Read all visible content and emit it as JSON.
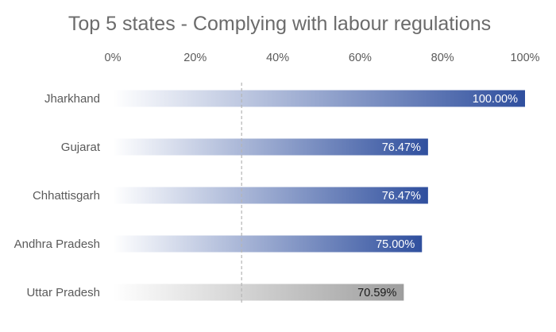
{
  "chart_data": {
    "type": "bar",
    "orientation": "horizontal",
    "title": "Top 5 states - Complying with labour regulations",
    "xlabel": "",
    "ylabel": "",
    "xlim": [
      0,
      100
    ],
    "x_ticks": [
      "0%",
      "20%",
      "40%",
      "60%",
      "80%",
      "100%"
    ],
    "x_axis_position": "top",
    "grid": false,
    "legend": "none",
    "reference_line": {
      "value": 31.25,
      "style": "dashed"
    },
    "categories": [
      "Jharkhand",
      "Gujarat",
      "Chhattisgarh",
      "Andhra Pradesh",
      "Uttar Pradesh"
    ],
    "values": [
      100.0,
      76.47,
      76.47,
      75.0,
      70.59
    ],
    "data_labels": [
      "100.00%",
      "76.47%",
      "76.47%",
      "75.00%",
      "70.59%"
    ],
    "bar_colors": [
      "#2f4f9e",
      "#2f4f9e",
      "#2f4f9e",
      "#2f4f9e",
      "#9e9e9e"
    ],
    "label_colors": [
      "#ffffff",
      "#ffffff",
      "#ffffff",
      "#ffffff",
      "#1a1a1a"
    ],
    "fill": "gradient-left-to-right"
  }
}
